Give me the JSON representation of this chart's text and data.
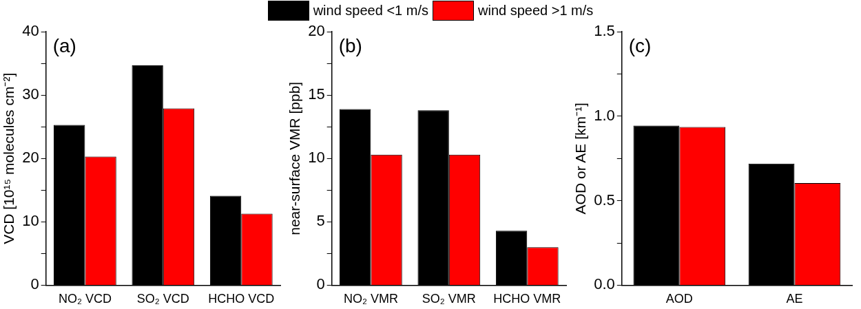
{
  "chart_data": [
    {
      "type": "bar",
      "ylabel": "VCD [10¹⁵ molecules cm⁻²]",
      "annotations": [
        "(a)"
      ],
      "categories": [
        "NO₂ VCD",
        "SO₂ VCD",
        "HCHO VCD"
      ],
      "legend": "top",
      "series": [
        {
          "name": "wind speed <1 m/s",
          "color": "#000000",
          "values": [
            25.3,
            34.7,
            14.1
          ]
        },
        {
          "name": "wind speed >1 m/s",
          "color": "#ff0000",
          "values": [
            20.3,
            27.9,
            11.3
          ]
        }
      ],
      "ylim": [
        0,
        40
      ],
      "yticks": [
        0,
        {
          "value": 5,
          "label": null
        },
        10,
        {
          "value": 15,
          "label": null
        },
        20,
        {
          "value": 25,
          "label": null
        },
        30,
        {
          "value": 35,
          "label": null
        },
        40
      ]
    },
    {
      "type": "bar",
      "ylabel": "near-surface VMR [ppb]",
      "annotations": [
        "(b)"
      ],
      "categories": [
        "NO₂ VMR",
        "SO₂ VMR",
        "HCHO VMR"
      ],
      "series": [
        {
          "color": "#000000",
          "values": [
            13.9,
            13.8,
            4.3
          ]
        },
        {
          "color": "#ff0000",
          "values": [
            10.3,
            10.3,
            3.0
          ]
        }
      ],
      "ylim": [
        0,
        20
      ],
      "yticks": [
        0,
        {
          "value": 2.5,
          "label": null
        },
        5,
        {
          "value": 7.5,
          "label": null
        },
        10,
        {
          "value": 12.5,
          "label": null
        },
        15,
        {
          "value": 17.5,
          "label": null
        },
        20
      ]
    },
    {
      "type": "bar",
      "ylabel": "AOD or AE [km⁻¹]",
      "annotations": [
        "(c)"
      ],
      "categories": [
        "AOD",
        "AE"
      ],
      "series": [
        {
          "color": "#000000",
          "values": [
            0.945,
            0.72
          ]
        },
        {
          "color": "#ff0000",
          "values": [
            0.937,
            0.605
          ]
        }
      ],
      "ylim": [
        0,
        1.5
      ],
      "yticks": [
        {
          "value": 0,
          "label": "0.0"
        },
        {
          "value": 0.25,
          "label": null
        },
        0.5,
        {
          "value": 0.75,
          "label": null
        },
        {
          "value": 1,
          "label": "1.0"
        },
        {
          "value": 1.25,
          "label": null
        },
        1.5
      ]
    }
  ]
}
